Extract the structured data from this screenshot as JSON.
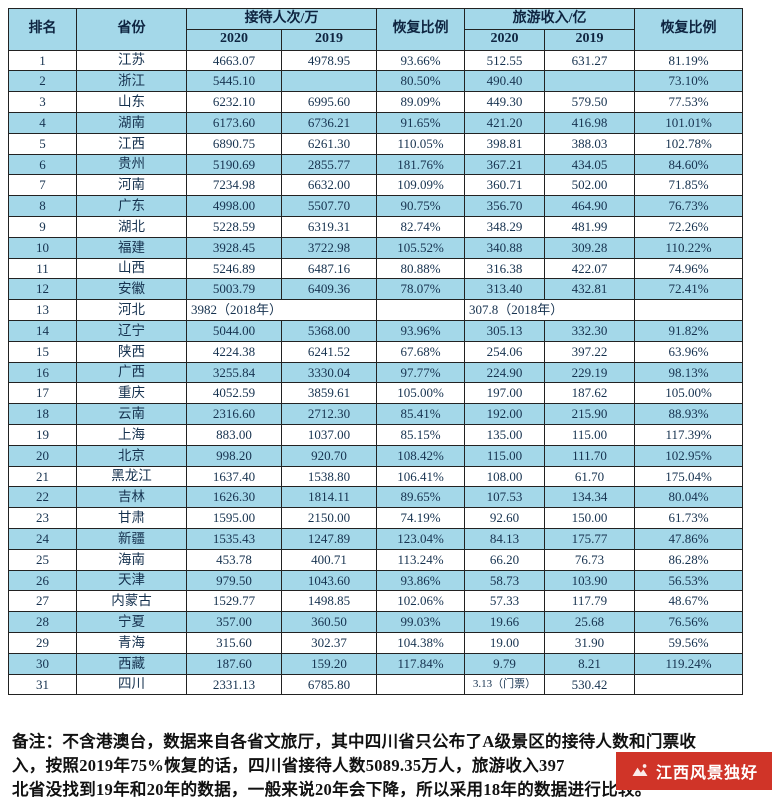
{
  "chart_data": {
    "type": "table",
    "title": "",
    "header": {
      "rank": "排名",
      "province": "省份",
      "visitors_group": "接待人次/万",
      "revenue_group": "旅游收入/亿",
      "recovery_visitors": "恢复比例",
      "recovery_revenue": "恢复比例",
      "year_2020": "2020",
      "year_2019": "2019"
    },
    "rows": [
      {
        "rank": "1",
        "province": "江苏",
        "v2020": "4663.07",
        "v2019": "4978.95",
        "vrec": "93.66%",
        "r2020": "512.55",
        "r2019": "631.27",
        "rrec": "81.19%"
      },
      {
        "rank": "2",
        "province": "浙江",
        "v2020": "5445.10",
        "v2019": "",
        "vrec": "80.50%",
        "r2020": "490.40",
        "r2019": "",
        "rrec": "73.10%"
      },
      {
        "rank": "3",
        "province": "山东",
        "v2020": "6232.10",
        "v2019": "6995.60",
        "vrec": "89.09%",
        "r2020": "449.30",
        "r2019": "579.50",
        "rrec": "77.53%"
      },
      {
        "rank": "4",
        "province": "湖南",
        "v2020": "6173.60",
        "v2019": "6736.21",
        "vrec": "91.65%",
        "r2020": "421.20",
        "r2019": "416.98",
        "rrec": "101.01%"
      },
      {
        "rank": "5",
        "province": "江西",
        "v2020": "6890.75",
        "v2019": "6261.30",
        "vrec": "110.05%",
        "r2020": "398.81",
        "r2019": "388.03",
        "rrec": "102.78%"
      },
      {
        "rank": "6",
        "province": "贵州",
        "v2020": "5190.69",
        "v2019": "2855.77",
        "vrec": "181.76%",
        "r2020": "367.21",
        "r2019": "434.05",
        "rrec": "84.60%"
      },
      {
        "rank": "7",
        "province": "河南",
        "v2020": "7234.98",
        "v2019": "6632.00",
        "vrec": "109.09%",
        "r2020": "360.71",
        "r2019": "502.00",
        "rrec": "71.85%"
      },
      {
        "rank": "8",
        "province": "广东",
        "v2020": "4998.00",
        "v2019": "5507.70",
        "vrec": "90.75%",
        "r2020": "356.70",
        "r2019": "464.90",
        "rrec": "76.73%"
      },
      {
        "rank": "9",
        "province": "湖北",
        "v2020": "5228.59",
        "v2019": "6319.31",
        "vrec": "82.74%",
        "r2020": "348.29",
        "r2019": "481.99",
        "rrec": "72.26%"
      },
      {
        "rank": "10",
        "province": "福建",
        "v2020": "3928.45",
        "v2019": "3722.98",
        "vrec": "105.52%",
        "r2020": "340.88",
        "r2019": "309.28",
        "rrec": "110.22%"
      },
      {
        "rank": "11",
        "province": "山西",
        "v2020": "5246.89",
        "v2019": "6487.16",
        "vrec": "80.88%",
        "r2020": "316.38",
        "r2019": "422.07",
        "rrec": "74.96%"
      },
      {
        "rank": "12",
        "province": "安徽",
        "v2020": "5003.79",
        "v2019": "6409.36",
        "vrec": "78.07%",
        "r2020": "313.40",
        "r2019": "432.81",
        "rrec": "72.41%"
      },
      {
        "rank": "13",
        "province": "河北",
        "v2020": "3982（2018年）",
        "vrec": "",
        "r2020": "307.8（2018年）",
        "rrec": "",
        "span": true
      },
      {
        "rank": "14",
        "province": "辽宁",
        "v2020": "5044.00",
        "v2019": "5368.00",
        "vrec": "93.96%",
        "r2020": "305.13",
        "r2019": "332.30",
        "rrec": "91.82%"
      },
      {
        "rank": "15",
        "province": "陕西",
        "v2020": "4224.38",
        "v2019": "6241.52",
        "vrec": "67.68%",
        "r2020": "254.06",
        "r2019": "397.22",
        "rrec": "63.96%"
      },
      {
        "rank": "16",
        "province": "广西",
        "v2020": "3255.84",
        "v2019": "3330.04",
        "vrec": "97.77%",
        "r2020": "224.90",
        "r2019": "229.19",
        "rrec": "98.13%"
      },
      {
        "rank": "17",
        "province": "重庆",
        "v2020": "4052.59",
        "v2019": "3859.61",
        "vrec": "105.00%",
        "r2020": "197.00",
        "r2019": "187.62",
        "rrec": "105.00%"
      },
      {
        "rank": "18",
        "province": "云南",
        "v2020": "2316.60",
        "v2019": "2712.30",
        "vrec": "85.41%",
        "r2020": "192.00",
        "r2019": "215.90",
        "rrec": "88.93%"
      },
      {
        "rank": "19",
        "province": "上海",
        "v2020": "883.00",
        "v2019": "1037.00",
        "vrec": "85.15%",
        "r2020": "135.00",
        "r2019": "115.00",
        "rrec": "117.39%"
      },
      {
        "rank": "20",
        "province": "北京",
        "v2020": "998.20",
        "v2019": "920.70",
        "vrec": "108.42%",
        "r2020": "115.00",
        "r2019": "111.70",
        "rrec": "102.95%"
      },
      {
        "rank": "21",
        "province": "黑龙江",
        "v2020": "1637.40",
        "v2019": "1538.80",
        "vrec": "106.41%",
        "r2020": "108.00",
        "r2019": "61.70",
        "rrec": "175.04%"
      },
      {
        "rank": "22",
        "province": "吉林",
        "v2020": "1626.30",
        "v2019": "1814.11",
        "vrec": "89.65%",
        "r2020": "107.53",
        "r2019": "134.34",
        "rrec": "80.04%"
      },
      {
        "rank": "23",
        "province": "甘肃",
        "v2020": "1595.00",
        "v2019": "2150.00",
        "vrec": "74.19%",
        "r2020": "92.60",
        "r2019": "150.00",
        "rrec": "61.73%"
      },
      {
        "rank": "24",
        "province": "新疆",
        "v2020": "1535.43",
        "v2019": "1247.89",
        "vrec": "123.04%",
        "r2020": "84.13",
        "r2019": "175.77",
        "rrec": "47.86%"
      },
      {
        "rank": "25",
        "province": "海南",
        "v2020": "453.78",
        "v2019": "400.71",
        "vrec": "113.24%",
        "r2020": "66.20",
        "r2019": "76.73",
        "rrec": "86.28%"
      },
      {
        "rank": "26",
        "province": "天津",
        "v2020": "979.50",
        "v2019": "1043.60",
        "vrec": "93.86%",
        "r2020": "58.73",
        "r2019": "103.90",
        "rrec": "56.53%"
      },
      {
        "rank": "27",
        "province": "内蒙古",
        "v2020": "1529.77",
        "v2019": "1498.85",
        "vrec": "102.06%",
        "r2020": "57.33",
        "r2019": "117.79",
        "rrec": "48.67%"
      },
      {
        "rank": "28",
        "province": "宁夏",
        "v2020": "357.00",
        "v2019": "360.50",
        "vrec": "99.03%",
        "r2020": "19.66",
        "r2019": "25.68",
        "rrec": "76.56%"
      },
      {
        "rank": "29",
        "province": "青海",
        "v2020": "315.60",
        "v2019": "302.37",
        "vrec": "104.38%",
        "r2020": "19.00",
        "r2019": "31.90",
        "rrec": "59.56%"
      },
      {
        "rank": "30",
        "province": "西藏",
        "v2020": "187.60",
        "v2019": "159.20",
        "vrec": "117.84%",
        "r2020": "9.79",
        "r2019": "8.21",
        "rrec": "119.24%"
      },
      {
        "rank": "31",
        "province": "四川",
        "v2020": "2331.13",
        "v2019": "6785.80",
        "vrec": "",
        "r2020": "3.13（门票）",
        "r2019": "530.42",
        "rrec": "",
        "small": true
      }
    ]
  },
  "note": {
    "lines": [
      "备注：不含港澳台，数据来自各省文旅厅，其中四川省只公布了A级景区的接待人数和门票收",
      "入，按照2019年75%恢复的话，四川省接待人数5089.35万人，旅游收入397",
      "北省没找到19年和20年的数据，一般来说20年会下降，所以采用18年的数据进行比较。"
    ]
  },
  "watermark": {
    "text": "江西风景独好"
  },
  "colors": {
    "highlight": "#a4d8e9",
    "text": "#16324f",
    "watermark_bg": "#d03428",
    "border": "#222222"
  }
}
